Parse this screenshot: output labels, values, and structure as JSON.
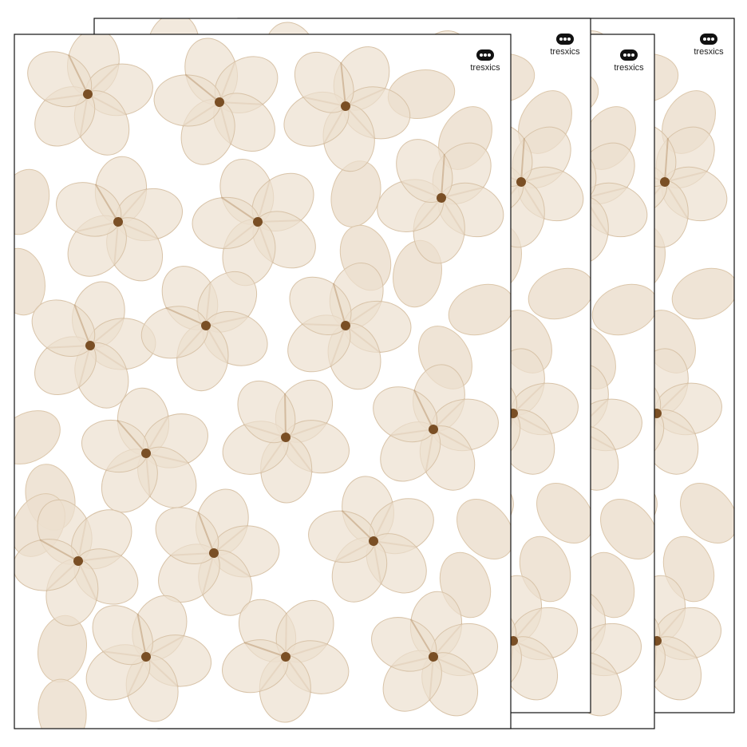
{
  "sheets": [
    {
      "logo": "tresxics"
    },
    {
      "logo": "tresxics"
    },
    {
      "logo": "tresxics"
    },
    {
      "logo": "tresxics"
    }
  ]
}
